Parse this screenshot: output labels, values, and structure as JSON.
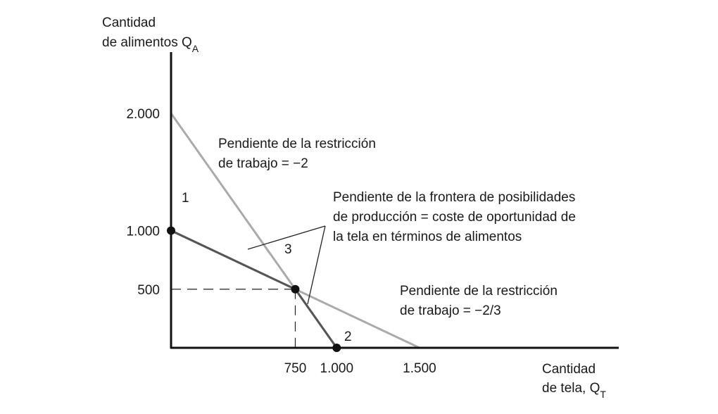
{
  "chart_data": {
    "type": "line",
    "title": "",
    "ylabel_line1": "Cantidad",
    "ylabel_line2": "de alimentos Q",
    "ylabel_sub": "A",
    "xlabel_line1": "Cantidad",
    "xlabel_line2": "de tela, Q",
    "xlabel_sub": "T",
    "xlim": [
      0,
      1650
    ],
    "ylim": [
      0,
      2300
    ],
    "x_ticks": [
      {
        "value": 750,
        "label": "750"
      },
      {
        "value": 1000,
        "label": "1.000"
      },
      {
        "value": 1500,
        "label": "1.500"
      }
    ],
    "y_ticks": [
      {
        "value": 500,
        "label": "500"
      },
      {
        "value": 1000,
        "label": "1.000"
      },
      {
        "value": 2000,
        "label": "2.000"
      }
    ],
    "series": [
      {
        "name": "restriccion-trabajo-pendiente-2",
        "color": "#aaaaaa",
        "points": [
          [
            0,
            2000
          ],
          [
            1000,
            0
          ]
        ]
      },
      {
        "name": "restriccion-trabajo-pendiente-2-3",
        "color": "#aaaaaa",
        "points": [
          [
            0,
            1000
          ],
          [
            1500,
            0
          ]
        ]
      },
      {
        "name": "frontera-posibilidades-produccion",
        "color": "#555555",
        "points": [
          [
            0,
            1000
          ],
          [
            750,
            500
          ],
          [
            1000,
            0
          ]
        ]
      }
    ],
    "points": [
      {
        "label": "1",
        "x": 0,
        "y": 1000
      },
      {
        "label": "3",
        "x": 750,
        "y": 500
      },
      {
        "label": "2",
        "x": 1000,
        "y": 0
      }
    ],
    "annotations": [
      {
        "lines": [
          "Pendiente de la restricción",
          "de trabajo = −2"
        ]
      },
      {
        "lines": [
          "Pendiente de la frontera de posibilidades",
          "de producción = coste de oportunidad de",
          "la tela en términos de alimentos"
        ]
      },
      {
        "lines": [
          "Pendiente de la restricción",
          "de trabajo = −2/3"
        ]
      }
    ]
  }
}
